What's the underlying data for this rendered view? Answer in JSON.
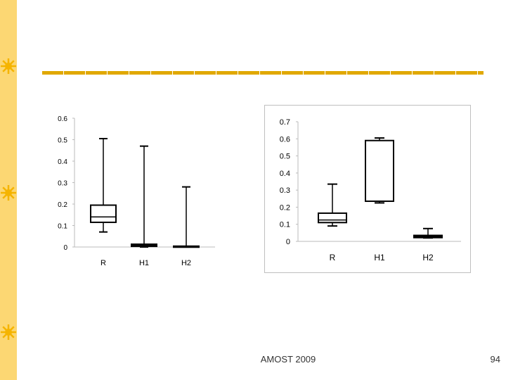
{
  "footer": {
    "text": "AMOST 2009",
    "page_number": "94"
  },
  "colors": {
    "accent": "#fcd773",
    "divider": "#e0a800",
    "sun": "#f5b400"
  },
  "decorations": {
    "sun_icon": "sun-icon"
  },
  "chart_data": [
    {
      "type": "box",
      "title": "",
      "xlabel": "",
      "ylabel": "",
      "categories": [
        "R",
        "H1",
        "H2"
      ],
      "ylim": [
        0,
        0.6
      ],
      "yticks": [
        "0",
        "0.1",
        "0.2",
        "0.3",
        "0.4",
        "0.5",
        "0.6"
      ],
      "boxes": [
        {
          "label": "R",
          "min": 0.07,
          "q1": 0.115,
          "median": 0.14,
          "q3": 0.195,
          "max": 0.505
        },
        {
          "label": "H1",
          "min": 0.0,
          "q1": 0.003,
          "median": 0.008,
          "q3": 0.013,
          "max": 0.47
        },
        {
          "label": "H2",
          "min": 0.0,
          "q1": 0.001,
          "median": 0.002,
          "q3": 0.004,
          "max": 0.28
        }
      ]
    },
    {
      "type": "box",
      "title": "",
      "xlabel": "",
      "ylabel": "",
      "categories": [
        "R",
        "H1",
        "H2"
      ],
      "ylim": [
        0,
        0.7
      ],
      "yticks": [
        "0",
        "0.1",
        "0.2",
        "0.3",
        "0.4",
        "0.5",
        "0.6",
        "0.7"
      ],
      "boxes": [
        {
          "label": "R",
          "min": 0.09,
          "q1": 0.11,
          "median": 0.125,
          "q3": 0.165,
          "max": 0.335
        },
        {
          "label": "H1",
          "min": 0.225,
          "q1": 0.235,
          "median": 0.235,
          "q3": 0.59,
          "max": 0.605
        },
        {
          "label": "H2",
          "min": 0.02,
          "q1": 0.022,
          "median": 0.028,
          "q3": 0.035,
          "max": 0.075
        }
      ]
    }
  ]
}
